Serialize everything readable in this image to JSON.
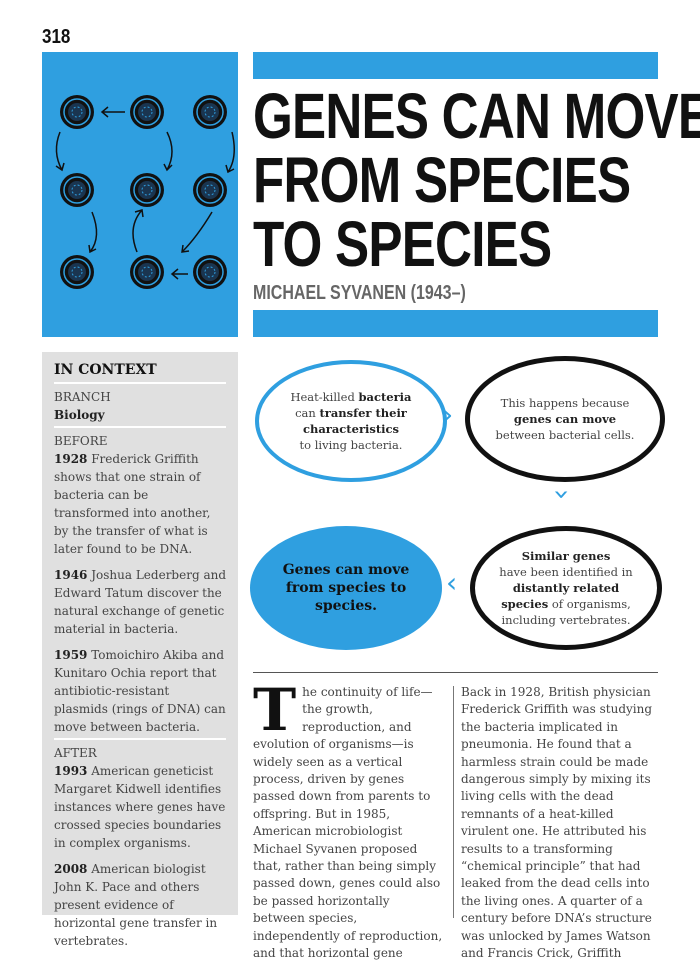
{
  "page_number": "318",
  "title_lines": [
    "GENES CAN MOVE",
    "FROM SPECIES",
    "TO SPECIES"
  ],
  "author": "MICHAEL SYVANEN (1943–)",
  "colors": {
    "accent": "#2f9fe0",
    "sidebar": "#e0e0e0"
  },
  "sidebar": {
    "heading": "IN CONTEXT",
    "branch_label": "BRANCH",
    "branch": "Biology",
    "before_label": "BEFORE",
    "before": [
      {
        "year": "1928",
        "text": " Frederick Griffith shows that one strain of bacteria can be transformed into another, by the transfer of what is later found to be DNA."
      },
      {
        "year": "1946",
        "text": " Joshua Lederberg and Edward Tatum discover the natural exchange of genetic material in bacteria."
      },
      {
        "year": "1959",
        "text": " Tomoichiro Akiba and Kunitaro Ochia report that antibiotic-resistant plasmids (rings of DNA) can move between bacteria."
      }
    ],
    "after_label": "AFTER",
    "after": [
      {
        "year": "1993",
        "text": " American geneticist Margaret Kidwell identifies instances where genes have crossed species boundaries in complex organisms."
      },
      {
        "year": "2008",
        "text": " American biologist John K. Pace and others present evidence of horizontal gene transfer in vertebrates."
      }
    ]
  },
  "flow": {
    "b1": [
      "Heat-killed ",
      "bacteria",
      " can ",
      "transfer their characteristics",
      " to living bacteria."
    ],
    "b2": [
      "This happens because ",
      "genes can move",
      " between bacterial cells."
    ],
    "b3": [
      "Similar genes",
      " have been identified in ",
      "distantly related species",
      " of organisms, including vertebrates."
    ],
    "b4": "Genes can move from species to species."
  },
  "body": {
    "drop_cap": "T",
    "col1": "he continuity of life—the growth, reproduction, and evolution of organisms—is widely seen as a vertical process, driven by genes passed down from parents to offspring. But in 1985, American microbiologist Michael Syvanen proposed that, rather than being simply passed down, genes could also be passed horizontally between species, independently of reproduction, and that horizontal gene transfer (HGT) plays a key role in evolution.",
    "col2": "Back in 1928, British physician Frederick Griffith was studying the bacteria implicated in pneumonia. He found that a harmless strain could be made dangerous simply by mixing its living cells with the dead remnants of a heat-killed virulent one. He attributed his results to a transforming “chemical principle” that had leaked from the dead cells into the living ones. A quarter of a century before DNA’s structure was unlocked by James Watson and Francis Crick, Griffith"
  }
}
